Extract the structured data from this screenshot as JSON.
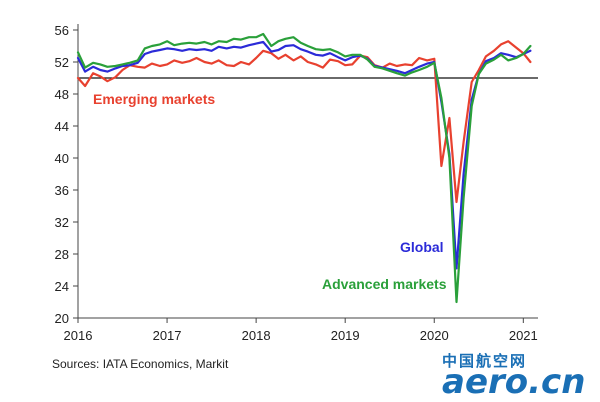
{
  "chart_data": {
    "type": "line",
    "title": "",
    "xlabel": "",
    "ylabel": "",
    "ylim": [
      20,
      56
    ],
    "yticks": [
      20,
      24,
      28,
      32,
      36,
      40,
      44,
      48,
      52,
      56
    ],
    "xlim": [
      2016,
      2021.12
    ],
    "xticks": [
      "2016",
      "2017",
      "2018",
      "2019",
      "2020",
      "2021"
    ],
    "reference_line": 50,
    "grid": false,
    "legend": "inline labels",
    "series": [
      {
        "name": "Emerging markets",
        "color": "#e8412f",
        "points": [
          [
            2016.0,
            50.0
          ],
          [
            2016.08,
            49.0
          ],
          [
            2016.17,
            50.6
          ],
          [
            2016.25,
            50.2
          ],
          [
            2016.33,
            49.6
          ],
          [
            2016.42,
            50.1
          ],
          [
            2016.5,
            51.0
          ],
          [
            2016.58,
            51.6
          ],
          [
            2016.67,
            51.4
          ],
          [
            2016.75,
            51.3
          ],
          [
            2016.83,
            51.8
          ],
          [
            2016.92,
            51.5
          ],
          [
            2017.0,
            51.7
          ],
          [
            2017.08,
            52.2
          ],
          [
            2017.17,
            51.9
          ],
          [
            2017.25,
            52.1
          ],
          [
            2017.33,
            52.5
          ],
          [
            2017.42,
            52.0
          ],
          [
            2017.5,
            51.8
          ],
          [
            2017.58,
            52.2
          ],
          [
            2017.67,
            51.6
          ],
          [
            2017.75,
            51.5
          ],
          [
            2017.83,
            52.0
          ],
          [
            2017.92,
            51.7
          ],
          [
            2018.0,
            52.5
          ],
          [
            2018.08,
            53.4
          ],
          [
            2018.17,
            53.1
          ],
          [
            2018.25,
            52.4
          ],
          [
            2018.33,
            52.9
          ],
          [
            2018.42,
            52.2
          ],
          [
            2018.5,
            52.7
          ],
          [
            2018.58,
            52.0
          ],
          [
            2018.67,
            51.7
          ],
          [
            2018.75,
            51.3
          ],
          [
            2018.83,
            52.3
          ],
          [
            2018.92,
            52.1
          ],
          [
            2019.0,
            51.6
          ],
          [
            2019.08,
            51.7
          ],
          [
            2019.17,
            52.8
          ],
          [
            2019.25,
            52.6
          ],
          [
            2019.33,
            51.6
          ],
          [
            2019.42,
            51.3
          ],
          [
            2019.5,
            51.8
          ],
          [
            2019.58,
            51.5
          ],
          [
            2019.67,
            51.7
          ],
          [
            2019.75,
            51.6
          ],
          [
            2019.83,
            52.5
          ],
          [
            2019.92,
            52.2
          ],
          [
            2020.0,
            52.4
          ],
          [
            2020.08,
            39.0
          ],
          [
            2020.17,
            45.0
          ],
          [
            2020.25,
            34.5
          ],
          [
            2020.33,
            42.0
          ],
          [
            2020.42,
            49.5
          ],
          [
            2020.5,
            51.0
          ],
          [
            2020.58,
            52.7
          ],
          [
            2020.67,
            53.4
          ],
          [
            2020.75,
            54.2
          ],
          [
            2020.83,
            54.6
          ],
          [
            2020.92,
            53.8
          ],
          [
            2021.0,
            53.1
          ],
          [
            2021.08,
            52.0
          ]
        ]
      },
      {
        "name": "Global",
        "color": "#2b2bd8",
        "points": [
          [
            2016.0,
            52.5
          ],
          [
            2016.08,
            50.8
          ],
          [
            2016.17,
            51.4
          ],
          [
            2016.25,
            51.0
          ],
          [
            2016.33,
            50.8
          ],
          [
            2016.42,
            51.2
          ],
          [
            2016.5,
            51.5
          ],
          [
            2016.58,
            51.6
          ],
          [
            2016.67,
            51.9
          ],
          [
            2016.75,
            53.0
          ],
          [
            2016.83,
            53.3
          ],
          [
            2016.92,
            53.5
          ],
          [
            2017.0,
            53.7
          ],
          [
            2017.08,
            53.6
          ],
          [
            2017.17,
            53.4
          ],
          [
            2017.25,
            53.6
          ],
          [
            2017.33,
            53.5
          ],
          [
            2017.42,
            53.6
          ],
          [
            2017.5,
            53.4
          ],
          [
            2017.58,
            53.9
          ],
          [
            2017.67,
            53.7
          ],
          [
            2017.75,
            53.9
          ],
          [
            2017.83,
            53.8
          ],
          [
            2017.92,
            54.1
          ],
          [
            2018.0,
            54.3
          ],
          [
            2018.08,
            54.5
          ],
          [
            2018.17,
            53.3
          ],
          [
            2018.25,
            53.5
          ],
          [
            2018.33,
            54.0
          ],
          [
            2018.42,
            54.1
          ],
          [
            2018.5,
            53.6
          ],
          [
            2018.58,
            53.3
          ],
          [
            2018.67,
            52.9
          ],
          [
            2018.75,
            52.8
          ],
          [
            2018.83,
            53.1
          ],
          [
            2018.92,
            52.6
          ],
          [
            2019.0,
            52.2
          ],
          [
            2019.08,
            52.6
          ],
          [
            2019.17,
            52.8
          ],
          [
            2019.25,
            52.4
          ],
          [
            2019.33,
            51.5
          ],
          [
            2019.42,
            51.3
          ],
          [
            2019.5,
            51.1
          ],
          [
            2019.58,
            50.9
          ],
          [
            2019.67,
            50.6
          ],
          [
            2019.75,
            51.0
          ],
          [
            2019.83,
            51.4
          ],
          [
            2019.92,
            51.8
          ],
          [
            2020.0,
            52.0
          ],
          [
            2020.08,
            47.0
          ],
          [
            2020.17,
            40.5
          ],
          [
            2020.25,
            26.2
          ],
          [
            2020.33,
            38.0
          ],
          [
            2020.42,
            47.3
          ],
          [
            2020.5,
            50.5
          ],
          [
            2020.58,
            52.1
          ],
          [
            2020.67,
            52.5
          ],
          [
            2020.75,
            53.1
          ],
          [
            2020.83,
            52.9
          ],
          [
            2020.92,
            52.6
          ],
          [
            2021.0,
            53.0
          ],
          [
            2021.08,
            53.4
          ]
        ]
      },
      {
        "name": "Advanced markets",
        "color": "#2aa03a",
        "points": [
          [
            2016.0,
            53.2
          ],
          [
            2016.08,
            51.3
          ],
          [
            2016.17,
            51.9
          ],
          [
            2016.25,
            51.7
          ],
          [
            2016.33,
            51.4
          ],
          [
            2016.42,
            51.5
          ],
          [
            2016.5,
            51.7
          ],
          [
            2016.58,
            51.9
          ],
          [
            2016.67,
            52.2
          ],
          [
            2016.75,
            53.7
          ],
          [
            2016.83,
            54.0
          ],
          [
            2016.92,
            54.2
          ],
          [
            2017.0,
            54.6
          ],
          [
            2017.08,
            54.1
          ],
          [
            2017.17,
            54.3
          ],
          [
            2017.25,
            54.4
          ],
          [
            2017.33,
            54.3
          ],
          [
            2017.42,
            54.5
          ],
          [
            2017.5,
            54.2
          ],
          [
            2017.58,
            54.6
          ],
          [
            2017.67,
            54.5
          ],
          [
            2017.75,
            54.9
          ],
          [
            2017.83,
            54.8
          ],
          [
            2017.92,
            55.1
          ],
          [
            2018.0,
            55.1
          ],
          [
            2018.08,
            55.5
          ],
          [
            2018.17,
            54.0
          ],
          [
            2018.25,
            54.6
          ],
          [
            2018.33,
            54.9
          ],
          [
            2018.42,
            55.1
          ],
          [
            2018.5,
            54.4
          ],
          [
            2018.58,
            54.0
          ],
          [
            2018.67,
            53.6
          ],
          [
            2018.75,
            53.5
          ],
          [
            2018.83,
            53.6
          ],
          [
            2018.92,
            53.2
          ],
          [
            2019.0,
            52.7
          ],
          [
            2019.08,
            52.9
          ],
          [
            2019.17,
            52.9
          ],
          [
            2019.25,
            52.3
          ],
          [
            2019.33,
            51.4
          ],
          [
            2019.42,
            51.2
          ],
          [
            2019.5,
            50.9
          ],
          [
            2019.58,
            50.6
          ],
          [
            2019.67,
            50.3
          ],
          [
            2019.75,
            50.7
          ],
          [
            2019.83,
            51.0
          ],
          [
            2019.92,
            51.4
          ],
          [
            2020.0,
            51.9
          ],
          [
            2020.08,
            47.5
          ],
          [
            2020.17,
            40.0
          ],
          [
            2020.25,
            22.0
          ],
          [
            2020.33,
            35.0
          ],
          [
            2020.42,
            46.5
          ],
          [
            2020.5,
            50.5
          ],
          [
            2020.58,
            51.8
          ],
          [
            2020.67,
            52.3
          ],
          [
            2020.75,
            52.9
          ],
          [
            2020.83,
            52.2
          ],
          [
            2020.92,
            52.5
          ],
          [
            2021.0,
            53.0
          ],
          [
            2021.08,
            54.0
          ]
        ]
      }
    ],
    "annotations": [
      {
        "text": "Emerging markets",
        "series": "Emerging markets"
      },
      {
        "text": "Global",
        "series": "Global"
      },
      {
        "text": "Advanced markets",
        "series": "Advanced markets"
      }
    ]
  },
  "source_text": "Sources: IATA Economics, Markit",
  "watermark": {
    "cn": "中国航空网",
    "en": "aero.cn"
  }
}
